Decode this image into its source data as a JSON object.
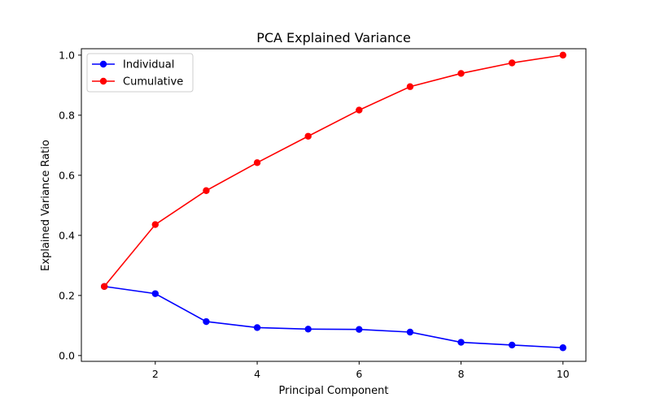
{
  "chart_data": {
    "type": "line",
    "title": "PCA Explained Variance",
    "xlabel": "Principal Component",
    "ylabel": "Explained Variance Ratio",
    "x": [
      1,
      2,
      3,
      4,
      5,
      6,
      7,
      8,
      9,
      10
    ],
    "xlim": [
      0.55,
      10.45
    ],
    "ylim": [
      -0.0193,
      1.0213
    ],
    "xticks": [
      2,
      4,
      6,
      8,
      10
    ],
    "yticks": [
      0.0,
      0.2,
      0.4,
      0.6,
      0.8,
      1.0
    ],
    "xtick_labels": [
      "2",
      "4",
      "6",
      "8",
      "10"
    ],
    "ytick_labels": [
      "0.0",
      "0.2",
      "0.4",
      "0.6",
      "0.8",
      "1.0"
    ],
    "grid": false,
    "legend_position": "top-left",
    "series": [
      {
        "name": "Individual",
        "color": "#0000ff",
        "marker": "circle",
        "values": [
          0.23,
          0.206,
          0.113,
          0.093,
          0.088,
          0.087,
          0.078,
          0.044,
          0.035,
          0.026
        ]
      },
      {
        "name": "Cumulative",
        "color": "#ff0000",
        "marker": "circle",
        "values": [
          0.23,
          0.436,
          0.549,
          0.642,
          0.73,
          0.817,
          0.895,
          0.939,
          0.974,
          1.0
        ]
      }
    ]
  }
}
